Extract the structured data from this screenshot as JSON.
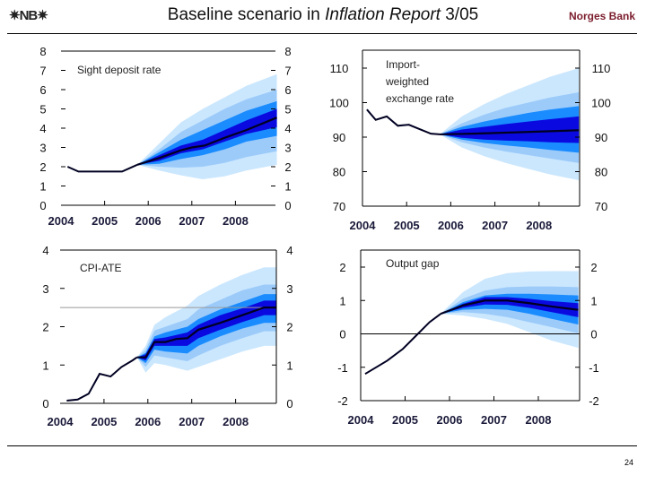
{
  "header": {
    "logo_text": "NB",
    "title_prefix": "Baseline scenario in ",
    "title_italic": "Inflation Report",
    "title_suffix": " 3/05",
    "bank_name": "Norges Bank"
  },
  "footer": {
    "page_number": "24"
  },
  "colors": {
    "band90": "#cbe7fe",
    "band70": "#9ccbfa",
    "band50": "#1a8cff",
    "band30": "#0a0ae0",
    "line": "#000022",
    "title": "#7a1c2c"
  },
  "chart_data": [
    {
      "type": "fan",
      "title": "Sight deposit rate",
      "ylim": [
        0,
        8
      ],
      "yticks": [
        "0",
        "1",
        "2",
        "3",
        "4",
        "5",
        "6",
        "7",
        "8"
      ],
      "xticks": [
        "2004",
        "2005",
        "2006",
        "2007",
        "2008"
      ],
      "history": [
        [
          2004.15,
          2.0
        ],
        [
          2004.4,
          1.75
        ],
        [
          2005.4,
          1.75
        ],
        [
          2005.75,
          2.1
        ]
      ],
      "median": [
        [
          2005.75,
          2.1
        ],
        [
          2006.25,
          2.45
        ],
        [
          2006.75,
          2.85
        ],
        [
          2007.0,
          3.0
        ],
        [
          2007.3,
          3.1
        ],
        [
          2007.75,
          3.5
        ],
        [
          2008.25,
          3.9
        ],
        [
          2008.95,
          4.55
        ]
      ],
      "band_x": [
        2005.75,
        2006.25,
        2006.75,
        2007.25,
        2007.75,
        2008.25,
        2008.95
      ],
      "bands": [
        {
          "level": 90,
          "lower": [
            2.1,
            1.8,
            1.55,
            1.35,
            1.5,
            1.8,
            2.1
          ],
          "upper": [
            2.1,
            3.2,
            4.3,
            5.0,
            5.6,
            6.2,
            6.8
          ]
        },
        {
          "level": 70,
          "lower": [
            2.1,
            2.0,
            1.95,
            2.0,
            2.2,
            2.5,
            2.8
          ],
          "upper": [
            2.1,
            2.9,
            3.8,
            4.4,
            5.0,
            5.5,
            6.0
          ]
        },
        {
          "level": 50,
          "lower": [
            2.1,
            2.15,
            2.4,
            2.6,
            2.9,
            3.3,
            3.6
          ],
          "upper": [
            2.1,
            2.75,
            3.4,
            3.9,
            4.4,
            4.9,
            5.4
          ]
        },
        {
          "level": 30,
          "lower": [
            2.1,
            2.3,
            2.7,
            2.9,
            3.3,
            3.7,
            4.05
          ],
          "upper": [
            2.1,
            2.6,
            3.1,
            3.4,
            3.9,
            4.4,
            5.0
          ]
        }
      ]
    },
    {
      "type": "fan",
      "title": "Import-\nweighted\nexchange rate",
      "ylim": [
        70,
        110
      ],
      "yticks": [
        "70",
        "80",
        "90",
        "100",
        "110"
      ],
      "xticks": [
        "2004",
        "2005",
        "2006",
        "2007",
        "2008"
      ],
      "history": [
        [
          2004.1,
          98
        ],
        [
          2004.3,
          95
        ],
        [
          2004.55,
          96
        ],
        [
          2004.8,
          93.3
        ],
        [
          2005.05,
          93.6
        ],
        [
          2005.3,
          92.3
        ],
        [
          2005.55,
          91
        ],
        [
          2005.75,
          90.8
        ]
      ],
      "median": [
        [
          2005.75,
          90.8
        ],
        [
          2006.5,
          91
        ],
        [
          2007.5,
          91.4
        ],
        [
          2008.9,
          92
        ]
      ],
      "band_x": [
        2005.75,
        2006.25,
        2006.75,
        2007.25,
        2007.75,
        2008.25,
        2008.9
      ],
      "bands": [
        {
          "level": 90,
          "lower": [
            90.8,
            87,
            84.5,
            82.5,
            80.8,
            79.2,
            77.5
          ],
          "upper": [
            90.8,
            96,
            99.5,
            102.5,
            105,
            107.5,
            110
          ]
        },
        {
          "level": 70,
          "lower": [
            90.8,
            88.5,
            87,
            85.8,
            84.8,
            83.8,
            82.5
          ],
          "upper": [
            90.8,
            94,
            96.5,
            98.5,
            100,
            101.5,
            103
          ]
        },
        {
          "level": 50,
          "lower": [
            90.8,
            89.3,
            88.3,
            87.6,
            87,
            86.3,
            85.5
          ],
          "upper": [
            90.8,
            93,
            94.5,
            95.8,
            97,
            98,
            99
          ]
        },
        {
          "level": 30,
          "lower": [
            90.8,
            89.8,
            89.3,
            89,
            88.8,
            88.5,
            88.3
          ],
          "upper": [
            90.8,
            92.2,
            93,
            93.8,
            94.5,
            95.2,
            96
          ]
        }
      ]
    },
    {
      "type": "fan",
      "title": "CPI-ATE",
      "ylim": [
        0,
        4
      ],
      "yticks": [
        "0",
        "1",
        "2",
        "3",
        "4"
      ],
      "xticks": [
        "2004",
        "2005",
        "2006",
        "2007",
        "2008"
      ],
      "reference_line": 2.5,
      "history": [
        [
          2004.15,
          0.07
        ],
        [
          2004.4,
          0.1
        ],
        [
          2004.65,
          0.25
        ],
        [
          2004.9,
          0.77
        ],
        [
          2005.15,
          0.7
        ],
        [
          2005.4,
          0.95
        ],
        [
          2005.65,
          1.12
        ],
        [
          2005.75,
          1.2
        ]
      ],
      "median": [
        [
          2005.75,
          1.2
        ],
        [
          2005.95,
          1.2
        ],
        [
          2006.15,
          1.6
        ],
        [
          2006.4,
          1.6
        ],
        [
          2006.65,
          1.68
        ],
        [
          2006.9,
          1.7
        ],
        [
          2007.15,
          1.92
        ],
        [
          2007.65,
          2.1
        ],
        [
          2008.15,
          2.3
        ],
        [
          2008.65,
          2.5
        ],
        [
          2008.92,
          2.5
        ]
      ],
      "band_x": [
        2005.75,
        2005.95,
        2006.15,
        2006.4,
        2006.9,
        2007.15,
        2007.65,
        2008.15,
        2008.65,
        2008.92
      ],
      "bands": [
        {
          "level": 90,
          "lower": [
            1.2,
            0.8,
            1.05,
            1.0,
            0.85,
            0.95,
            1.15,
            1.35,
            1.5,
            1.5
          ],
          "upper": [
            1.2,
            1.5,
            2.05,
            2.25,
            2.55,
            2.8,
            3.1,
            3.35,
            3.55,
            3.55
          ]
        },
        {
          "level": 70,
          "lower": [
            1.2,
            0.95,
            1.25,
            1.2,
            1.1,
            1.25,
            1.5,
            1.7,
            1.88,
            1.88
          ],
          "upper": [
            1.2,
            1.4,
            1.9,
            2.0,
            2.2,
            2.45,
            2.7,
            2.95,
            3.1,
            3.1
          ]
        },
        {
          "level": 50,
          "lower": [
            1.2,
            1.05,
            1.4,
            1.35,
            1.3,
            1.5,
            1.75,
            1.95,
            2.1,
            2.1
          ],
          "upper": [
            1.2,
            1.32,
            1.75,
            1.85,
            2.0,
            2.2,
            2.45,
            2.65,
            2.85,
            2.85
          ]
        },
        {
          "level": 30,
          "lower": [
            1.2,
            1.12,
            1.5,
            1.5,
            1.5,
            1.7,
            1.92,
            2.12,
            2.3,
            2.3
          ],
          "upper": [
            1.2,
            1.28,
            1.68,
            1.72,
            1.85,
            2.05,
            2.3,
            2.48,
            2.68,
            2.68
          ]
        }
      ]
    },
    {
      "type": "fan",
      "title": "Output gap",
      "ylim": [
        -2,
        2
      ],
      "yticks": [
        "-2",
        "-1",
        "0",
        "1",
        "2"
      ],
      "xticks": [
        "2004",
        "2005",
        "2006",
        "2007",
        "2008"
      ],
      "reference_line": 0,
      "history": [
        [
          2004.1,
          -1.2
        ],
        [
          2004.6,
          -0.8
        ],
        [
          2004.95,
          -0.45
        ],
        [
          2005.25,
          -0.05
        ],
        [
          2005.55,
          0.35
        ],
        [
          2005.8,
          0.6
        ]
      ],
      "median": [
        [
          2005.8,
          0.6
        ],
        [
          2006.3,
          0.85
        ],
        [
          2006.8,
          1.0
        ],
        [
          2007.3,
          1.0
        ],
        [
          2007.8,
          0.92
        ],
        [
          2008.3,
          0.82
        ],
        [
          2008.9,
          0.72
        ]
      ],
      "band_x": [
        2005.8,
        2006.3,
        2006.8,
        2007.3,
        2007.8,
        2008.3,
        2008.9
      ],
      "bands": [
        {
          "level": 90,
          "lower": [
            0.6,
            0.55,
            0.45,
            0.3,
            0.05,
            -0.2,
            -0.42
          ],
          "upper": [
            0.6,
            1.25,
            1.65,
            1.82,
            1.87,
            1.88,
            1.88
          ]
        },
        {
          "level": 70,
          "lower": [
            0.6,
            0.65,
            0.6,
            0.5,
            0.35,
            0.2,
            0.02
          ],
          "upper": [
            0.6,
            1.05,
            1.3,
            1.4,
            1.42,
            1.42,
            1.4
          ]
        },
        {
          "level": 50,
          "lower": [
            0.6,
            0.72,
            0.75,
            0.72,
            0.6,
            0.45,
            0.28
          ],
          "upper": [
            0.6,
            0.95,
            1.15,
            1.2,
            1.2,
            1.18,
            1.15
          ]
        },
        {
          "level": 30,
          "lower": [
            0.6,
            0.78,
            0.88,
            0.87,
            0.78,
            0.65,
            0.5
          ],
          "upper": [
            0.6,
            0.9,
            1.1,
            1.1,
            1.05,
            0.98,
            0.92
          ]
        }
      ]
    }
  ]
}
